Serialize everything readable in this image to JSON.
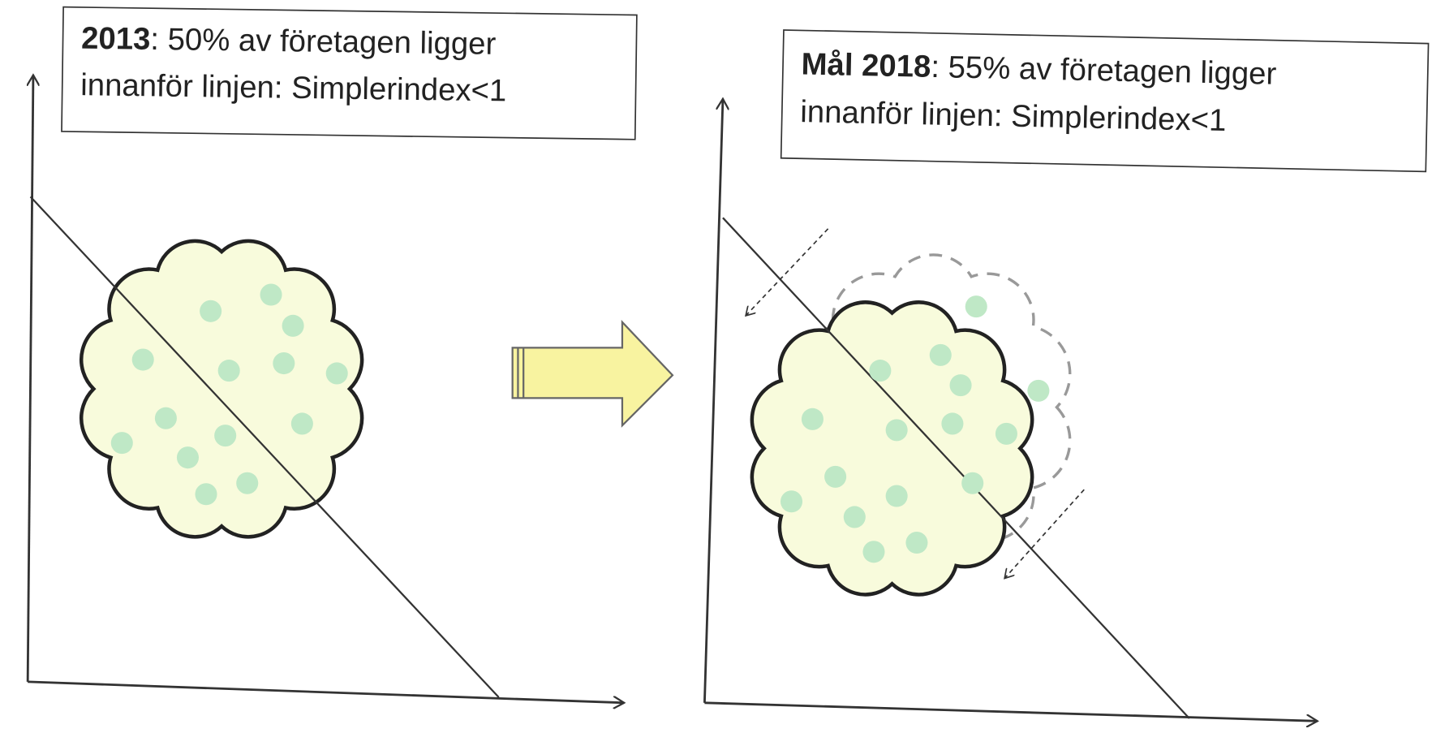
{
  "panels": [
    {
      "label": "2013",
      "line1": ": 50% av företagen ligger",
      "line2": "innanför linjen: Simplerindex<1"
    },
    {
      "label": "Mål 2018",
      "line1": ": 55% av företagen ligger",
      "line2": "innanför linjen: Simplerindex<1"
    }
  ]
}
